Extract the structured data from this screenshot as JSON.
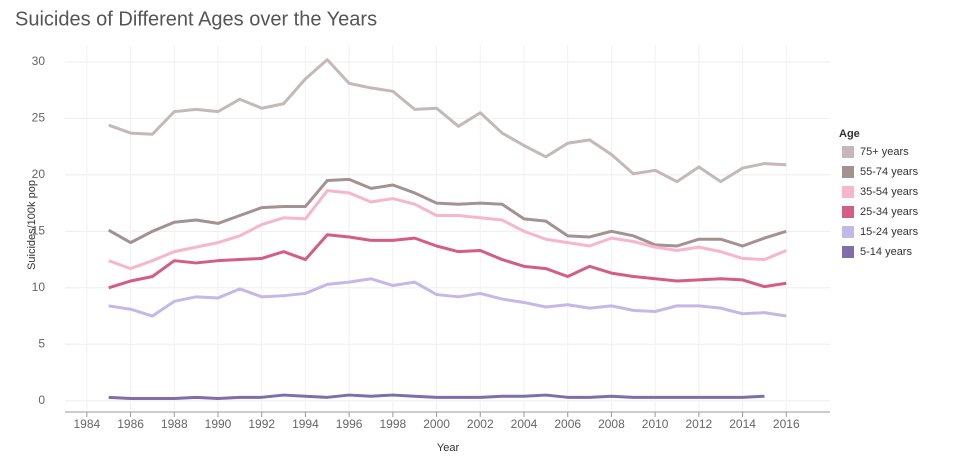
{
  "chart_data": {
    "type": "line",
    "title": "Suicides of Different Ages over the Years",
    "x_label": "Year",
    "y_label": "Suicides/100k pop",
    "legend_title": "Age",
    "x": [
      1985,
      1986,
      1987,
      1988,
      1989,
      1990,
      1991,
      1992,
      1993,
      1994,
      1995,
      1996,
      1997,
      1998,
      1999,
      2000,
      2001,
      2002,
      2003,
      2004,
      2005,
      2006,
      2007,
      2008,
      2009,
      2010,
      2011,
      2012,
      2013,
      2014,
      2015,
      2016
    ],
    "xlim": [
      1983,
      2018
    ],
    "xticks": [
      1984,
      1986,
      1988,
      1990,
      1992,
      1994,
      1996,
      1998,
      2000,
      2002,
      2004,
      2006,
      2008,
      2010,
      2012,
      2014,
      2016
    ],
    "ylim": [
      -1,
      31.5
    ],
    "yticks": [
      0,
      5,
      10,
      15,
      20,
      25,
      30
    ],
    "grid": true,
    "series": [
      {
        "name": "75+ years",
        "color": "#c5b8b8",
        "values": [
          24.4,
          23.7,
          23.6,
          25.6,
          25.8,
          25.6,
          26.7,
          25.9,
          26.3,
          28.5,
          30.2,
          28.1,
          27.7,
          27.4,
          25.8,
          25.9,
          24.3,
          25.5,
          23.7,
          22.6,
          21.6,
          22.8,
          23.1,
          21.8,
          20.1,
          20.4,
          19.4,
          20.7,
          19.4,
          20.6,
          21.0,
          20.9
        ]
      },
      {
        "name": "55-74 years",
        "color": "#a39291",
        "values": [
          15.1,
          14.0,
          15.0,
          15.8,
          16.0,
          15.7,
          16.4,
          17.1,
          17.2,
          17.2,
          19.5,
          19.6,
          18.8,
          19.1,
          18.4,
          17.5,
          17.4,
          17.5,
          17.4,
          16.1,
          15.9,
          14.6,
          14.5,
          15.0,
          14.6,
          13.8,
          13.7,
          14.3,
          14.3,
          13.7,
          14.4,
          15.0
        ]
      },
      {
        "name": "35-54 years",
        "color": "#f6b6cb",
        "values": [
          12.4,
          11.7,
          12.4,
          13.2,
          13.6,
          14.0,
          14.6,
          15.6,
          16.2,
          16.1,
          18.6,
          18.4,
          17.6,
          17.9,
          17.4,
          16.4,
          16.4,
          16.2,
          16.0,
          15.0,
          14.3,
          14.0,
          13.7,
          14.4,
          14.1,
          13.6,
          13.3,
          13.6,
          13.2,
          12.6,
          12.5,
          13.3
        ]
      },
      {
        "name": "25-34 years",
        "color": "#d45d85",
        "values": [
          10.0,
          10.6,
          11.0,
          12.4,
          12.2,
          12.4,
          12.5,
          12.6,
          13.2,
          12.5,
          14.7,
          14.5,
          14.2,
          14.2,
          14.4,
          13.7,
          13.2,
          13.3,
          12.5,
          11.9,
          11.7,
          11.0,
          11.9,
          11.3,
          11.0,
          10.8,
          10.6,
          10.7,
          10.8,
          10.7,
          10.1,
          10.4
        ]
      },
      {
        "name": "15-24 years",
        "color": "#c4b9e6",
        "values": [
          8.4,
          8.1,
          7.5,
          8.8,
          9.2,
          9.1,
          9.9,
          9.2,
          9.3,
          9.5,
          10.3,
          10.5,
          10.8,
          10.2,
          10.5,
          9.4,
          9.2,
          9.5,
          9.0,
          8.7,
          8.3,
          8.5,
          8.2,
          8.4,
          8.0,
          7.9,
          8.4,
          8.4,
          8.2,
          7.7,
          7.8,
          7.5
        ]
      },
      {
        "name": "5-14 years",
        "color": "#7f6ea8",
        "values": [
          0.3,
          0.2,
          0.2,
          0.2,
          0.3,
          0.2,
          0.3,
          0.3,
          0.5,
          0.4,
          0.3,
          0.5,
          0.4,
          0.5,
          0.4,
          0.3,
          0.3,
          0.3,
          0.4,
          0.4,
          0.5,
          0.3,
          0.3,
          0.4,
          0.3,
          0.3,
          0.3,
          0.3,
          0.3,
          0.3,
          0.4,
          null
        ]
      }
    ]
  }
}
